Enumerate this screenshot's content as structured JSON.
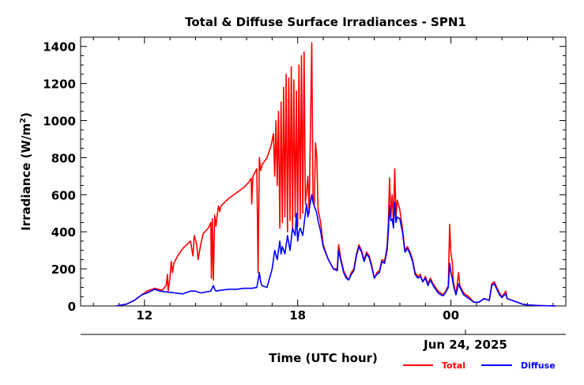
{
  "chart_data": {
    "type": "line",
    "title": "Total & Diffuse Surface Irradiances - SPN1",
    "xlabel": "Time (UTC hour)",
    "ylabel_main": "Irradiance (W/m",
    "ylabel_sup": "2",
    "ylabel_close": ")",
    "date_label": "Jun 24, 2025",
    "xlim": [
      9.5,
      4.5
    ],
    "ylim": [
      0,
      1450
    ],
    "xticks": [
      {
        "label": "12",
        "hours_after_start": 2.5
      },
      {
        "label": "18",
        "hours_after_start": 8.5
      },
      {
        "label": "00",
        "hours_after_start": 14.5
      }
    ],
    "yticks": [
      0,
      200,
      400,
      600,
      800,
      1000,
      1200,
      1400
    ],
    "legend_position": "bottom-right",
    "series": [
      {
        "name": "Total",
        "color": "#ff0000",
        "points": [
          [
            10.9,
            0
          ],
          [
            11.3,
            10
          ],
          [
            11.6,
            30
          ],
          [
            11.9,
            60
          ],
          [
            12.1,
            80
          ],
          [
            12.4,
            95
          ],
          [
            12.7,
            85
          ],
          [
            12.85,
            110
          ],
          [
            12.9,
            170
          ],
          [
            12.93,
            80
          ],
          [
            13.0,
            150
          ],
          [
            13.05,
            240
          ],
          [
            13.1,
            180
          ],
          [
            13.15,
            230
          ],
          [
            13.3,
            270
          ],
          [
            13.5,
            310
          ],
          [
            13.8,
            350
          ],
          [
            13.9,
            270
          ],
          [
            13.95,
            380
          ],
          [
            14.05,
            330
          ],
          [
            14.1,
            250
          ],
          [
            14.2,
            330
          ],
          [
            14.3,
            390
          ],
          [
            14.5,
            420
          ],
          [
            14.6,
            450
          ],
          [
            14.62,
            150
          ],
          [
            14.66,
            470
          ],
          [
            14.7,
            140
          ],
          [
            14.75,
            490
          ],
          [
            14.8,
            430
          ],
          [
            14.85,
            490
          ],
          [
            14.9,
            540
          ],
          [
            14.95,
            510
          ],
          [
            15.0,
            540
          ],
          [
            15.3,
            580
          ],
          [
            15.6,
            610
          ],
          [
            15.9,
            640
          ],
          [
            16.1,
            670
          ],
          [
            16.18,
            690
          ],
          [
            16.2,
            550
          ],
          [
            16.25,
            700
          ],
          [
            16.4,
            740
          ],
          [
            16.45,
            180
          ],
          [
            16.5,
            800
          ],
          [
            16.55,
            730
          ],
          [
            16.6,
            760
          ],
          [
            16.8,
            800
          ],
          [
            16.95,
            860
          ],
          [
            17.05,
            930
          ],
          [
            17.1,
            700
          ],
          [
            17.15,
            1000
          ],
          [
            17.2,
            650
          ],
          [
            17.25,
            1050
          ],
          [
            17.3,
            420
          ],
          [
            17.35,
            1100
          ],
          [
            17.4,
            450
          ],
          [
            17.45,
            1180
          ],
          [
            17.5,
            480
          ],
          [
            17.55,
            1250
          ],
          [
            17.6,
            400
          ],
          [
            17.65,
            1230
          ],
          [
            17.7,
            460
          ],
          [
            17.75,
            1290
          ],
          [
            17.8,
            420
          ],
          [
            17.85,
            1220
          ],
          [
            17.9,
            480
          ],
          [
            17.95,
            1160
          ],
          [
            18.0,
            430
          ],
          [
            18.05,
            1300
          ],
          [
            18.1,
            470
          ],
          [
            18.15,
            1350
          ],
          [
            18.2,
            500
          ],
          [
            18.25,
            1370
          ],
          [
            18.3,
            550
          ],
          [
            18.35,
            620
          ],
          [
            18.4,
            700
          ],
          [
            18.45,
            500
          ],
          [
            18.55,
            1420
          ],
          [
            18.6,
            580
          ],
          [
            18.65,
            550
          ],
          [
            18.7,
            880
          ],
          [
            18.75,
            800
          ],
          [
            18.8,
            520
          ],
          [
            18.9,
            450
          ],
          [
            19.0,
            330
          ],
          [
            19.2,
            250
          ],
          [
            19.4,
            200
          ],
          [
            19.55,
            200
          ],
          [
            19.6,
            330
          ],
          [
            19.7,
            250
          ],
          [
            19.8,
            190
          ],
          [
            19.9,
            160
          ],
          [
            20.0,
            140
          ],
          [
            20.1,
            180
          ],
          [
            20.2,
            200
          ],
          [
            20.3,
            280
          ],
          [
            20.4,
            330
          ],
          [
            20.5,
            300
          ],
          [
            20.6,
            250
          ],
          [
            20.7,
            290
          ],
          [
            20.8,
            270
          ],
          [
            20.9,
            220
          ],
          [
            21.0,
            150
          ],
          [
            21.1,
            180
          ],
          [
            21.2,
            190
          ],
          [
            21.3,
            250
          ],
          [
            21.4,
            240
          ],
          [
            21.5,
            320
          ],
          [
            21.55,
            450
          ],
          [
            21.6,
            690
          ],
          [
            21.65,
            480
          ],
          [
            21.7,
            600
          ],
          [
            21.75,
            440
          ],
          [
            21.8,
            740
          ],
          [
            21.85,
            480
          ],
          [
            21.9,
            570
          ],
          [
            22.0,
            520
          ],
          [
            22.1,
            420
          ],
          [
            22.2,
            300
          ],
          [
            22.3,
            320
          ],
          [
            22.4,
            290
          ],
          [
            22.5,
            250
          ],
          [
            22.6,
            180
          ],
          [
            22.7,
            160
          ],
          [
            22.8,
            170
          ],
          [
            22.9,
            130
          ],
          [
            23.0,
            160
          ],
          [
            23.1,
            120
          ],
          [
            23.2,
            150
          ],
          [
            23.3,
            120
          ],
          [
            23.5,
            80
          ],
          [
            23.6,
            70
          ],
          [
            23.7,
            60
          ],
          [
            23.8,
            80
          ],
          [
            23.9,
            110
          ],
          [
            23.95,
            440
          ],
          [
            24.0,
            280
          ],
          [
            24.05,
            240
          ],
          [
            24.1,
            130
          ],
          [
            24.2,
            60
          ],
          [
            24.3,
            180
          ],
          [
            24.35,
            110
          ],
          [
            24.5,
            70
          ],
          [
            24.7,
            50
          ],
          [
            24.9,
            20
          ],
          [
            25.1,
            20
          ],
          [
            25.3,
            40
          ],
          [
            25.5,
            30
          ],
          [
            25.6,
            120
          ],
          [
            25.7,
            130
          ],
          [
            25.8,
            100
          ],
          [
            25.9,
            70
          ],
          [
            26.0,
            50
          ],
          [
            26.1,
            70
          ],
          [
            26.15,
            80
          ],
          [
            26.2,
            40
          ],
          [
            26.4,
            30
          ],
          [
            26.6,
            20
          ],
          [
            26.8,
            10
          ],
          [
            27.0,
            5
          ],
          [
            27.5,
            2
          ],
          [
            28.1,
            0
          ]
        ]
      },
      {
        "name": "Diffuse",
        "color": "#0000ff",
        "points": [
          [
            10.9,
            0
          ],
          [
            11.3,
            10
          ],
          [
            11.6,
            30
          ],
          [
            11.9,
            60
          ],
          [
            12.1,
            70
          ],
          [
            12.4,
            90
          ],
          [
            12.6,
            80
          ],
          [
            12.9,
            75
          ],
          [
            13.2,
            70
          ],
          [
            13.5,
            65
          ],
          [
            13.8,
            80
          ],
          [
            14.0,
            80
          ],
          [
            14.2,
            70
          ],
          [
            14.4,
            75
          ],
          [
            14.6,
            80
          ],
          [
            14.7,
            110
          ],
          [
            14.75,
            90
          ],
          [
            14.8,
            80
          ],
          [
            15.0,
            85
          ],
          [
            15.3,
            90
          ],
          [
            15.6,
            90
          ],
          [
            15.9,
            95
          ],
          [
            16.2,
            95
          ],
          [
            16.4,
            100
          ],
          [
            16.5,
            180
          ],
          [
            16.55,
            130
          ],
          [
            16.6,
            110
          ],
          [
            16.8,
            100
          ],
          [
            17.0,
            200
          ],
          [
            17.1,
            300
          ],
          [
            17.2,
            250
          ],
          [
            17.3,
            350
          ],
          [
            17.35,
            280
          ],
          [
            17.4,
            320
          ],
          [
            17.5,
            280
          ],
          [
            17.6,
            380
          ],
          [
            17.7,
            300
          ],
          [
            17.8,
            420
          ],
          [
            17.9,
            380
          ],
          [
            17.95,
            500
          ],
          [
            18.0,
            350
          ],
          [
            18.05,
            400
          ],
          [
            18.1,
            420
          ],
          [
            18.2,
            380
          ],
          [
            18.3,
            500
          ],
          [
            18.35,
            550
          ],
          [
            18.4,
            480
          ],
          [
            18.45,
            520
          ],
          [
            18.5,
            560
          ],
          [
            18.55,
            600
          ],
          [
            18.6,
            560
          ],
          [
            18.7,
            520
          ],
          [
            18.75,
            500
          ],
          [
            18.8,
            460
          ],
          [
            18.9,
            400
          ],
          [
            19.0,
            320
          ],
          [
            19.2,
            250
          ],
          [
            19.4,
            200
          ],
          [
            19.55,
            190
          ],
          [
            19.6,
            300
          ],
          [
            19.7,
            240
          ],
          [
            19.8,
            180
          ],
          [
            19.9,
            150
          ],
          [
            20.0,
            140
          ],
          [
            20.1,
            170
          ],
          [
            20.2,
            190
          ],
          [
            20.3,
            270
          ],
          [
            20.4,
            320
          ],
          [
            20.5,
            290
          ],
          [
            20.6,
            240
          ],
          [
            20.7,
            280
          ],
          [
            20.8,
            260
          ],
          [
            20.9,
            210
          ],
          [
            21.0,
            150
          ],
          [
            21.1,
            170
          ],
          [
            21.2,
            180
          ],
          [
            21.3,
            240
          ],
          [
            21.4,
            230
          ],
          [
            21.5,
            300
          ],
          [
            21.55,
            400
          ],
          [
            21.6,
            540
          ],
          [
            21.65,
            460
          ],
          [
            21.7,
            470
          ],
          [
            21.75,
            420
          ],
          [
            21.8,
            560
          ],
          [
            21.85,
            450
          ],
          [
            21.9,
            480
          ],
          [
            22.0,
            470
          ],
          [
            22.1,
            400
          ],
          [
            22.2,
            290
          ],
          [
            22.3,
            310
          ],
          [
            22.4,
            280
          ],
          [
            22.5,
            240
          ],
          [
            22.6,
            170
          ],
          [
            22.7,
            150
          ],
          [
            22.8,
            160
          ],
          [
            22.9,
            130
          ],
          [
            23.0,
            150
          ],
          [
            23.1,
            110
          ],
          [
            23.2,
            140
          ],
          [
            23.3,
            110
          ],
          [
            23.5,
            70
          ],
          [
            23.6,
            60
          ],
          [
            23.7,
            55
          ],
          [
            23.8,
            75
          ],
          [
            23.9,
            100
          ],
          [
            23.95,
            230
          ],
          [
            24.0,
            180
          ],
          [
            24.05,
            150
          ],
          [
            24.1,
            110
          ],
          [
            24.2,
            60
          ],
          [
            24.3,
            120
          ],
          [
            24.35,
            100
          ],
          [
            24.5,
            60
          ],
          [
            24.7,
            40
          ],
          [
            24.9,
            20
          ],
          [
            25.1,
            20
          ],
          [
            25.3,
            40
          ],
          [
            25.5,
            30
          ],
          [
            25.6,
            110
          ],
          [
            25.7,
            120
          ],
          [
            25.8,
            90
          ],
          [
            25.9,
            60
          ],
          [
            26.0,
            45
          ],
          [
            26.1,
            60
          ],
          [
            26.15,
            65
          ],
          [
            26.2,
            40
          ],
          [
            26.4,
            30
          ],
          [
            26.6,
            20
          ],
          [
            26.8,
            10
          ],
          [
            27.0,
            5
          ],
          [
            27.5,
            2
          ],
          [
            28.1,
            0
          ]
        ]
      }
    ]
  }
}
